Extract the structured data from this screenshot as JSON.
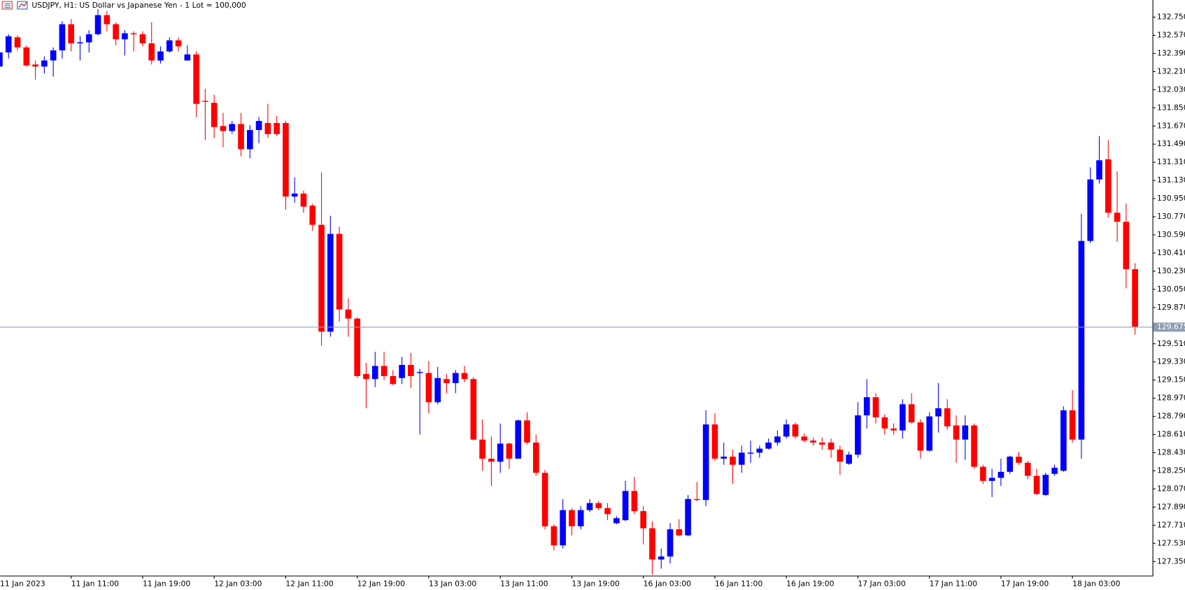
{
  "chart_data": {
    "type": "candlestick",
    "title": "USDJPY, H1:  US Dollar vs Japanese Yen - 1 Lot = 100,000",
    "categories": [
      "11 Jan 2023",
      null,
      null,
      null,
      null,
      null,
      null,
      null,
      "11 Jan 11:00",
      null,
      null,
      null,
      null,
      null,
      null,
      null,
      "11 Jan 19:00",
      null,
      null,
      null,
      null,
      null,
      null,
      null,
      "12 Jan 03:00",
      null,
      null,
      null,
      null,
      null,
      null,
      null,
      "12 Jan 11:00",
      null,
      null,
      null,
      null,
      null,
      null,
      null,
      "12 Jan 19:00",
      null,
      null,
      null,
      null,
      null,
      null,
      null,
      "13 Jan 03:00",
      null,
      null,
      null,
      null,
      null,
      null,
      null,
      "13 Jan 11:00",
      null,
      null,
      null,
      null,
      null,
      null,
      null,
      "13 Jan 19:00",
      null,
      null,
      null,
      null,
      null,
      null,
      null,
      "16 Jan 03:00",
      null,
      null,
      null,
      null,
      null,
      null,
      null,
      "16 Jan 11:00",
      null,
      null,
      null,
      null,
      null,
      null,
      null,
      "16 Jan 19:00",
      null,
      null,
      null,
      null,
      null,
      null,
      null,
      "17 Jan 03:00",
      null,
      null,
      null,
      null,
      null,
      null,
      null,
      "17 Jan 11:00",
      null,
      null,
      null,
      null,
      null,
      null,
      null,
      "17 Jan 19:00",
      null,
      null,
      null,
      null,
      null,
      null,
      null,
      "18 Jan 03:00",
      null,
      null,
      null,
      null,
      null,
      null,
      null
    ],
    "open": [
      132.26,
      132.4,
      132.55,
      132.45,
      132.28,
      132.26,
      132.32,
      132.42,
      132.68,
      132.49,
      132.5,
      132.58,
      132.77,
      132.68,
      132.53,
      132.59,
      132.58,
      132.49,
      132.32,
      132.41,
      132.52,
      132.32,
      132.38,
      131.92,
      131.9,
      131.67,
      131.62,
      131.69,
      131.44,
      131.63,
      131.7,
      131.7,
      131.7,
      130.97,
      131.0,
      130.88,
      130.69,
      129.63,
      130.6,
      129.85,
      129.76,
      129.21,
      129.16,
      129.29,
      129.19,
      129.17,
      129.3,
      129.22,
      129.22,
      128.93,
      129.16,
      129.12,
      129.22,
      129.16,
      128.56,
      128.37,
      128.34,
      128.52,
      128.37,
      128.75,
      128.53,
      128.23,
      127.7,
      127.51,
      127.86,
      127.7,
      127.86,
      127.93,
      127.88,
      127.73,
      127.76,
      128.05,
      127.85,
      127.68,
      127.37,
      127.4,
      127.67,
      127.61,
      127.97,
      127.96,
      128.71,
      128.37,
      128.39,
      128.31,
      128.42,
      128.43,
      128.47,
      128.53,
      128.59,
      128.71,
      128.59,
      128.55,
      128.53,
      128.53,
      128.46,
      128.32,
      128.41,
      128.8,
      128.98,
      128.78,
      128.67,
      128.65,
      128.91,
      128.73,
      128.45,
      128.79,
      128.87,
      128.7,
      128.56,
      128.7,
      128.29,
      128.15,
      128.18,
      128.24,
      128.39,
      128.33,
      128.2,
      128.01,
      128.22,
      128.25,
      128.85,
      128.56,
      130.53,
      131.14,
      131.34,
      130.81,
      130.72,
      130.25
    ],
    "high": [
      132.45,
      132.58,
      132.57,
      132.47,
      132.32,
      132.36,
      132.45,
      132.71,
      132.73,
      132.56,
      132.62,
      132.83,
      132.81,
      132.7,
      132.62,
      132.61,
      132.61,
      132.7,
      132.46,
      132.55,
      132.55,
      132.47,
      132.41,
      132.04,
      131.98,
      131.8,
      131.72,
      131.8,
      131.68,
      131.76,
      131.89,
      131.77,
      131.72,
      131.16,
      131.03,
      130.9,
      131.21,
      130.78,
      130.67,
      129.96,
      129.77,
      129.32,
      129.43,
      129.43,
      129.25,
      129.38,
      129.42,
      129.26,
      129.34,
      129.28,
      129.21,
      129.25,
      129.29,
      129.18,
      128.76,
      128.59,
      128.72,
      128.53,
      128.76,
      128.83,
      128.61,
      128.26,
      127.72,
      127.97,
      127.88,
      127.9,
      127.97,
      127.95,
      127.93,
      127.8,
      128.15,
      128.19,
      127.9,
      127.75,
      127.48,
      127.73,
      127.77,
      128.01,
      128.14,
      128.85,
      128.82,
      128.53,
      128.46,
      128.5,
      128.55,
      128.5,
      128.57,
      128.65,
      128.76,
      128.73,
      128.62,
      128.58,
      128.58,
      128.57,
      128.5,
      128.44,
      128.93,
      129.16,
      129.02,
      128.81,
      128.72,
      128.96,
      129.02,
      128.76,
      128.83,
      129.12,
      128.96,
      128.8,
      128.8,
      128.72,
      128.31,
      128.27,
      128.37,
      128.4,
      128.44,
      128.35,
      128.27,
      128.23,
      128.31,
      128.89,
      129.05,
      130.8,
      131.26,
      131.57,
      131.53,
      131.22,
      130.9,
      130.31
    ],
    "low": [
      132.26,
      132.34,
      132.42,
      132.26,
      132.13,
      132.19,
      132.16,
      132.34,
      132.41,
      132.32,
      132.4,
      132.57,
      132.61,
      132.47,
      132.37,
      132.41,
      132.46,
      132.28,
      132.29,
      132.4,
      132.41,
      132.32,
      131.76,
      131.53,
      131.55,
      131.46,
      131.59,
      131.37,
      131.35,
      131.5,
      131.55,
      131.57,
      130.84,
      130.91,
      130.81,
      130.63,
      129.49,
      129.58,
      129.73,
      129.58,
      129.17,
      128.87,
      129.08,
      129.15,
      129.1,
      129.11,
      129.07,
      128.61,
      128.82,
      128.91,
      129.02,
      129.02,
      129.13,
      128.55,
      128.25,
      128.1,
      128.23,
      128.27,
      128.37,
      128.51,
      128.2,
      127.67,
      127.46,
      127.48,
      127.61,
      127.67,
      127.84,
      127.86,
      127.76,
      127.72,
      127.75,
      127.82,
      127.52,
      127.22,
      127.28,
      127.33,
      127.6,
      127.6,
      127.95,
      127.9,
      128.35,
      128.31,
      128.12,
      128.23,
      128.33,
      128.38,
      128.46,
      128.5,
      128.57,
      128.57,
      128.53,
      128.5,
      128.46,
      128.38,
      128.21,
      128.31,
      128.38,
      128.67,
      128.72,
      128.61,
      128.61,
      128.57,
      128.72,
      128.37,
      128.44,
      128.63,
      128.66,
      128.33,
      128.36,
      128.27,
      128.12,
      127.99,
      128.1,
      128.22,
      128.31,
      128.17,
      128.01,
      128.0,
      128.2,
      128.24,
      128.53,
      128.37,
      130.51,
      131.1,
      130.76,
      130.52,
      130.06,
      129.6
    ],
    "close": [
      132.4,
      132.56,
      132.45,
      132.27,
      132.26,
      132.32,
      132.42,
      132.68,
      132.49,
      132.5,
      132.58,
      132.77,
      132.68,
      132.53,
      132.59,
      132.58,
      132.49,
      132.32,
      132.41,
      132.52,
      132.46,
      132.38,
      131.89,
      131.91,
      131.66,
      131.62,
      131.69,
      131.44,
      131.63,
      131.72,
      131.59,
      131.59,
      130.97,
      131.0,
      130.87,
      130.69,
      129.63,
      130.6,
      129.85,
      129.76,
      129.19,
      129.16,
      129.29,
      129.19,
      129.11,
      129.3,
      129.19,
      129.23,
      128.93,
      129.17,
      129.12,
      129.22,
      129.16,
      128.56,
      128.37,
      128.34,
      128.52,
      128.37,
      128.75,
      128.53,
      128.23,
      127.7,
      127.51,
      127.86,
      127.7,
      127.86,
      127.93,
      127.88,
      127.82,
      127.78,
      128.05,
      127.85,
      127.68,
      127.37,
      127.4,
      127.67,
      127.61,
      127.97,
      127.96,
      128.71,
      128.37,
      128.39,
      128.31,
      128.43,
      128.43,
      128.47,
      128.53,
      128.59,
      128.71,
      128.59,
      128.55,
      128.53,
      128.51,
      128.46,
      128.34,
      128.41,
      128.8,
      128.98,
      128.78,
      128.67,
      128.65,
      128.91,
      128.73,
      128.45,
      128.79,
      128.87,
      128.69,
      128.56,
      128.7,
      128.29,
      128.15,
      128.18,
      128.24,
      128.39,
      128.33,
      128.2,
      128.02,
      128.21,
      128.28,
      128.85,
      128.56,
      130.53,
      131.14,
      131.33,
      130.81,
      130.72,
      130.25,
      129.68
    ],
    "up_color": "#0000ff",
    "down_color": "#ff0000",
    "ylim": [
      127.21,
      132.92
    ],
    "yticks": [
      {
        "value": 127.35,
        "label": "127.350"
      },
      {
        "value": 127.53,
        "label": "127.530"
      },
      {
        "value": 127.71,
        "label": "127.710"
      },
      {
        "value": 127.89,
        "label": "127.890"
      },
      {
        "value": 128.07,
        "label": "128.070"
      },
      {
        "value": 128.25,
        "label": "128.250"
      },
      {
        "value": 128.43,
        "label": "128.430"
      },
      {
        "value": 128.61,
        "label": "128.610"
      },
      {
        "value": 128.79,
        "label": "128.790"
      },
      {
        "value": 128.97,
        "label": "128.970"
      },
      {
        "value": 129.15,
        "label": "129.150"
      },
      {
        "value": 129.33,
        "label": "129.330"
      },
      {
        "value": 129.51,
        "label": "129.510"
      },
      {
        "value": 129.87,
        "label": "129.870"
      },
      {
        "value": 130.05,
        "label": "130.050"
      },
      {
        "value": 130.23,
        "label": "130.230"
      },
      {
        "value": 130.41,
        "label": "130.410"
      },
      {
        "value": 130.59,
        "label": "130.590"
      },
      {
        "value": 130.77,
        "label": "130.770"
      },
      {
        "value": 130.95,
        "label": "130.950"
      },
      {
        "value": 131.13,
        "label": "131.130"
      },
      {
        "value": 131.31,
        "label": "131.310"
      },
      {
        "value": 131.49,
        "label": "131.490"
      },
      {
        "value": 131.67,
        "label": "131.670"
      },
      {
        "value": 131.85,
        "label": "131.850"
      },
      {
        "value": 132.03,
        "label": "132.030"
      },
      {
        "value": 132.21,
        "label": "132.210"
      },
      {
        "value": 132.39,
        "label": "132.390"
      },
      {
        "value": 132.57,
        "label": "132.570"
      },
      {
        "value": 132.75,
        "label": "132.750"
      }
    ],
    "current_price": {
      "value": 129.675,
      "label": "129.675"
    },
    "current_price_color": "#8c9db5",
    "grid": false
  }
}
